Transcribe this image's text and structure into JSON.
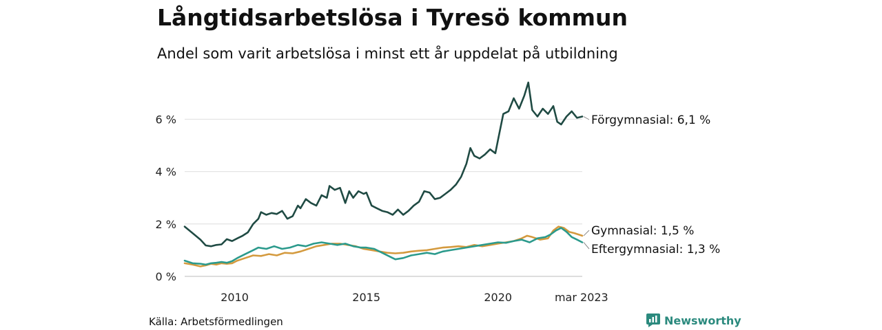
{
  "title": "Långtidsarbetslösa i Tyresö kommun",
  "subtitle": "Andel som varit arbetslösa i minst ett år uppdelat på utbildning",
  "source": "Källa: Arbetsförmedlingen",
  "brand": {
    "name": "Newsworthy",
    "icon": "newsworthy-logo-icon",
    "color": "#2b8a7e"
  },
  "chart_data": {
    "type": "line",
    "x_range": [
      2008.1,
      2023.2
    ],
    "ylim": [
      0,
      7.4
    ],
    "y_ticks": [
      {
        "value": 0,
        "label": "0 %"
      },
      {
        "value": 2,
        "label": "2 %"
      },
      {
        "value": 4,
        "label": "4 %"
      },
      {
        "value": 6,
        "label": "6 %"
      }
    ],
    "x_ticks": [
      {
        "value": 2010,
        "label": "2010"
      },
      {
        "value": 2015,
        "label": "2015"
      },
      {
        "value": 2020,
        "label": "2020"
      },
      {
        "value": 2023.17,
        "label": "mar 2023"
      }
    ],
    "grid": true,
    "series": [
      {
        "name": "Förgymnasial",
        "end_label": "Förgymnasial: 6,1 %",
        "color": "#1f4a43",
        "points": [
          [
            2008.1,
            1.9
          ],
          [
            2008.4,
            1.65
          ],
          [
            2008.7,
            1.4
          ],
          [
            2008.9,
            1.18
          ],
          [
            2009.1,
            1.15
          ],
          [
            2009.3,
            1.2
          ],
          [
            2009.5,
            1.22
          ],
          [
            2009.7,
            1.42
          ],
          [
            2009.9,
            1.35
          ],
          [
            2010.1,
            1.45
          ],
          [
            2010.3,
            1.55
          ],
          [
            2010.5,
            1.68
          ],
          [
            2010.7,
            2.0
          ],
          [
            2010.9,
            2.2
          ],
          [
            2011.0,
            2.45
          ],
          [
            2011.2,
            2.35
          ],
          [
            2011.4,
            2.42
          ],
          [
            2011.6,
            2.38
          ],
          [
            2011.8,
            2.5
          ],
          [
            2012.0,
            2.2
          ],
          [
            2012.2,
            2.3
          ],
          [
            2012.4,
            2.7
          ],
          [
            2012.5,
            2.6
          ],
          [
            2012.7,
            2.95
          ],
          [
            2012.9,
            2.8
          ],
          [
            2013.1,
            2.7
          ],
          [
            2013.3,
            3.1
          ],
          [
            2013.5,
            3.0
          ],
          [
            2013.6,
            3.45
          ],
          [
            2013.8,
            3.3
          ],
          [
            2014.0,
            3.38
          ],
          [
            2014.2,
            2.8
          ],
          [
            2014.35,
            3.25
          ],
          [
            2014.5,
            3.0
          ],
          [
            2014.7,
            3.25
          ],
          [
            2014.9,
            3.15
          ],
          [
            2015.0,
            3.2
          ],
          [
            2015.2,
            2.7
          ],
          [
            2015.4,
            2.6
          ],
          [
            2015.6,
            2.5
          ],
          [
            2015.8,
            2.45
          ],
          [
            2016.0,
            2.35
          ],
          [
            2016.2,
            2.55
          ],
          [
            2016.4,
            2.35
          ],
          [
            2016.6,
            2.5
          ],
          [
            2016.8,
            2.7
          ],
          [
            2017.0,
            2.85
          ],
          [
            2017.2,
            3.25
          ],
          [
            2017.4,
            3.2
          ],
          [
            2017.6,
            2.95
          ],
          [
            2017.8,
            3.0
          ],
          [
            2018.0,
            3.15
          ],
          [
            2018.2,
            3.3
          ],
          [
            2018.4,
            3.5
          ],
          [
            2018.6,
            3.8
          ],
          [
            2018.8,
            4.3
          ],
          [
            2018.95,
            4.9
          ],
          [
            2019.1,
            4.6
          ],
          [
            2019.3,
            4.5
          ],
          [
            2019.5,
            4.65
          ],
          [
            2019.7,
            4.85
          ],
          [
            2019.9,
            4.7
          ],
          [
            2020.0,
            5.2
          ],
          [
            2020.2,
            6.2
          ],
          [
            2020.4,
            6.3
          ],
          [
            2020.6,
            6.8
          ],
          [
            2020.8,
            6.4
          ],
          [
            2021.0,
            6.9
          ],
          [
            2021.15,
            7.4
          ],
          [
            2021.3,
            6.35
          ],
          [
            2021.5,
            6.1
          ],
          [
            2021.7,
            6.4
          ],
          [
            2021.9,
            6.2
          ],
          [
            2022.1,
            6.5
          ],
          [
            2022.25,
            5.9
          ],
          [
            2022.4,
            5.8
          ],
          [
            2022.6,
            6.1
          ],
          [
            2022.8,
            6.3
          ],
          [
            2023.0,
            6.05
          ],
          [
            2023.2,
            6.1
          ]
        ]
      },
      {
        "name": "Gymnasial",
        "end_label": "Gymnasial: 1,5 %",
        "color": "#d49a3e",
        "points": [
          [
            2008.1,
            0.5
          ],
          [
            2008.4,
            0.45
          ],
          [
            2008.7,
            0.38
          ],
          [
            2008.9,
            0.42
          ],
          [
            2009.1,
            0.48
          ],
          [
            2009.3,
            0.45
          ],
          [
            2009.5,
            0.5
          ],
          [
            2009.7,
            0.48
          ],
          [
            2009.9,
            0.5
          ],
          [
            2010.1,
            0.6
          ],
          [
            2010.4,
            0.7
          ],
          [
            2010.7,
            0.8
          ],
          [
            2011.0,
            0.78
          ],
          [
            2011.3,
            0.85
          ],
          [
            2011.6,
            0.8
          ],
          [
            2011.9,
            0.9
          ],
          [
            2012.2,
            0.88
          ],
          [
            2012.5,
            0.95
          ],
          [
            2012.8,
            1.05
          ],
          [
            2013.1,
            1.15
          ],
          [
            2013.4,
            1.2
          ],
          [
            2013.7,
            1.25
          ],
          [
            2014.0,
            1.25
          ],
          [
            2014.3,
            1.2
          ],
          [
            2014.6,
            1.15
          ],
          [
            2014.9,
            1.05
          ],
          [
            2015.2,
            1.0
          ],
          [
            2015.5,
            0.95
          ],
          [
            2015.8,
            0.9
          ],
          [
            2016.1,
            0.88
          ],
          [
            2016.4,
            0.9
          ],
          [
            2016.7,
            0.95
          ],
          [
            2017.0,
            0.98
          ],
          [
            2017.3,
            1.0
          ],
          [
            2017.6,
            1.05
          ],
          [
            2017.9,
            1.1
          ],
          [
            2018.2,
            1.12
          ],
          [
            2018.5,
            1.15
          ],
          [
            2018.8,
            1.12
          ],
          [
            2019.1,
            1.2
          ],
          [
            2019.4,
            1.15
          ],
          [
            2019.7,
            1.2
          ],
          [
            2020.0,
            1.25
          ],
          [
            2020.3,
            1.3
          ],
          [
            2020.6,
            1.35
          ],
          [
            2020.9,
            1.45
          ],
          [
            2021.1,
            1.55
          ],
          [
            2021.3,
            1.5
          ],
          [
            2021.6,
            1.4
          ],
          [
            2021.9,
            1.45
          ],
          [
            2022.1,
            1.75
          ],
          [
            2022.3,
            1.9
          ],
          [
            2022.5,
            1.85
          ],
          [
            2022.7,
            1.7
          ],
          [
            2022.9,
            1.65
          ],
          [
            2023.2,
            1.55
          ]
        ]
      },
      {
        "name": "Eftergymnasial",
        "end_label": "Eftergymnasial: 1,3 %",
        "color": "#2b9a8c",
        "points": [
          [
            2008.1,
            0.6
          ],
          [
            2008.4,
            0.5
          ],
          [
            2008.7,
            0.48
          ],
          [
            2008.9,
            0.45
          ],
          [
            2009.1,
            0.5
          ],
          [
            2009.3,
            0.52
          ],
          [
            2009.5,
            0.55
          ],
          [
            2009.7,
            0.52
          ],
          [
            2009.9,
            0.58
          ],
          [
            2010.1,
            0.7
          ],
          [
            2010.4,
            0.85
          ],
          [
            2010.7,
            1.0
          ],
          [
            2010.9,
            1.1
          ],
          [
            2011.2,
            1.05
          ],
          [
            2011.5,
            1.15
          ],
          [
            2011.8,
            1.05
          ],
          [
            2012.1,
            1.1
          ],
          [
            2012.4,
            1.2
          ],
          [
            2012.7,
            1.15
          ],
          [
            2013.0,
            1.25
          ],
          [
            2013.3,
            1.3
          ],
          [
            2013.6,
            1.25
          ],
          [
            2013.9,
            1.2
          ],
          [
            2014.2,
            1.25
          ],
          [
            2014.5,
            1.15
          ],
          [
            2014.8,
            1.1
          ],
          [
            2015.0,
            1.1
          ],
          [
            2015.3,
            1.05
          ],
          [
            2015.6,
            0.9
          ],
          [
            2015.9,
            0.75
          ],
          [
            2016.1,
            0.65
          ],
          [
            2016.4,
            0.7
          ],
          [
            2016.7,
            0.8
          ],
          [
            2017.0,
            0.85
          ],
          [
            2017.3,
            0.9
          ],
          [
            2017.6,
            0.85
          ],
          [
            2017.9,
            0.95
          ],
          [
            2018.2,
            1.0
          ],
          [
            2018.5,
            1.05
          ],
          [
            2018.8,
            1.1
          ],
          [
            2019.1,
            1.15
          ],
          [
            2019.4,
            1.2
          ],
          [
            2019.7,
            1.25
          ],
          [
            2020.0,
            1.3
          ],
          [
            2020.3,
            1.28
          ],
          [
            2020.6,
            1.35
          ],
          [
            2020.9,
            1.4
          ],
          [
            2021.2,
            1.3
          ],
          [
            2021.5,
            1.45
          ],
          [
            2021.8,
            1.5
          ],
          [
            2022.0,
            1.6
          ],
          [
            2022.2,
            1.75
          ],
          [
            2022.4,
            1.85
          ],
          [
            2022.6,
            1.7
          ],
          [
            2022.8,
            1.5
          ],
          [
            2023.0,
            1.4
          ],
          [
            2023.2,
            1.3
          ]
        ]
      }
    ]
  }
}
